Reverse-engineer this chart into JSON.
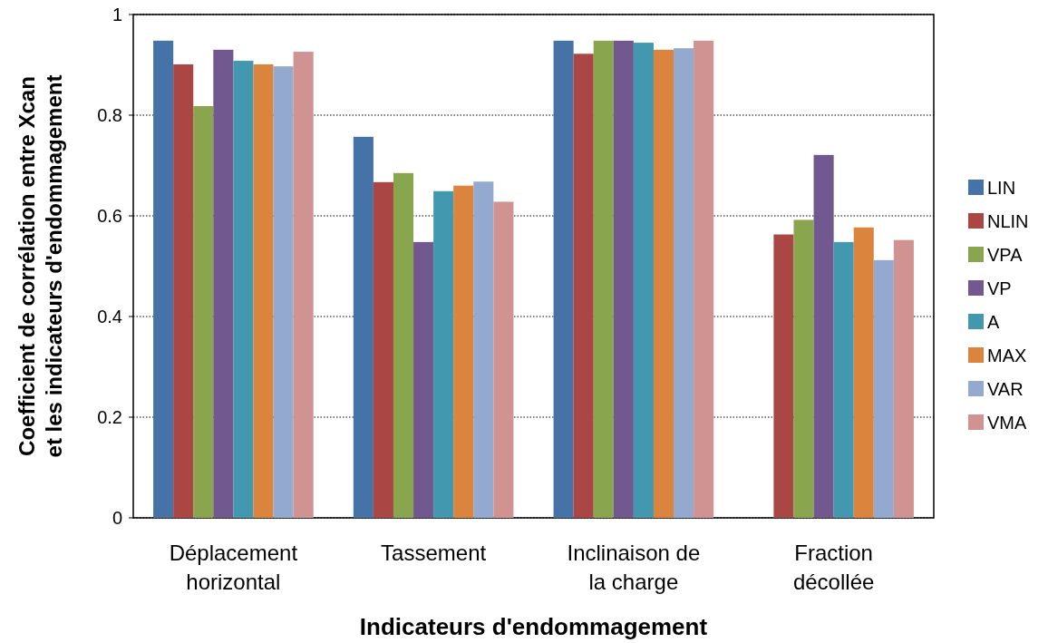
{
  "chart_data": {
    "type": "bar",
    "xlabel": "Indicateurs d'endommagement",
    "ylabel": "Coefficient de corrélation entre Xcan\net les indicateurs d'endommagement",
    "categories": [
      "Déplacement\nhorizontal",
      "Tassement",
      "Inclinaison de\nla charge",
      "Fraction\ndécollée"
    ],
    "series": [
      {
        "name": "LIN",
        "color": "#4572a7",
        "values": [
          0.948,
          0.757,
          0.948,
          null
        ]
      },
      {
        "name": "NLIN",
        "color": "#aa4643",
        "values": [
          0.901,
          0.667,
          0.922,
          0.563
        ]
      },
      {
        "name": "VPA",
        "color": "#89a54e",
        "values": [
          0.818,
          0.685,
          0.948,
          0.592
        ]
      },
      {
        "name": "VP",
        "color": "#71588f",
        "values": [
          0.93,
          0.548,
          0.948,
          0.721
        ]
      },
      {
        "name": "A",
        "color": "#4198af",
        "values": [
          0.908,
          0.649,
          0.944,
          0.548
        ]
      },
      {
        "name": "MAX",
        "color": "#db843d",
        "values": [
          0.901,
          0.66,
          0.93,
          0.577
        ]
      },
      {
        "name": "VAR",
        "color": "#93a9cf",
        "values": [
          0.897,
          0.668,
          0.933,
          0.512
        ]
      },
      {
        "name": "VMA",
        "color": "#d19392",
        "values": [
          0.926,
          0.628,
          0.948,
          0.552
        ]
      }
    ],
    "ylim": [
      0,
      1
    ],
    "yticks": [
      0,
      0.2,
      0.4,
      0.6,
      0.8,
      1
    ],
    "grid": "y",
    "legend": "right"
  }
}
